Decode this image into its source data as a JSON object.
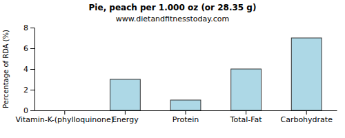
{
  "chart_data": {
    "type": "bar",
    "title": "Pie, peach per 1.000 oz (or 28.35 g)",
    "subtitle": "www.dietandfitnesstoday.com",
    "y_label": "Percentage of RDA (%)",
    "categories": [
      "Vitamin-K-(phylloquinone)",
      "Energy",
      "Protein",
      "Total-Fat",
      "Carbohydrate"
    ],
    "values": [
      0,
      3,
      1,
      4,
      7
    ],
    "color": "#add8e6",
    "ylim": [
      0,
      8
    ],
    "yticks": [
      0,
      2,
      4,
      6,
      8
    ],
    "grid": false
  }
}
